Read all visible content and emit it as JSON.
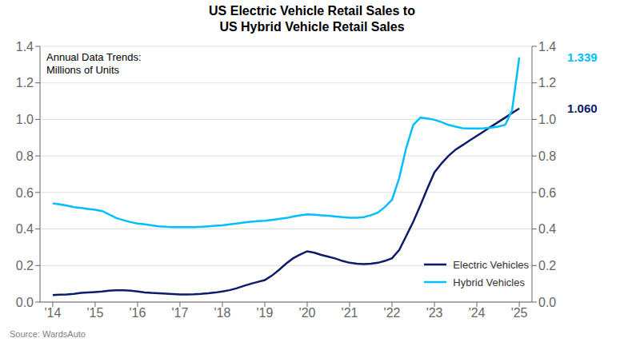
{
  "chart_data": {
    "type": "line",
    "title": "US Electric Vehicle Retail Sales to\nUS Hybrid Vehicle Retail Sales",
    "subtitle": "Annual Data Trends:\nMillions of Units",
    "source": "Source: WardsAuto",
    "x": [
      2014.0,
      2014.17,
      2014.33,
      2014.5,
      2014.67,
      2014.83,
      2015.0,
      2015.17,
      2015.33,
      2015.5,
      2015.67,
      2015.83,
      2016.0,
      2016.17,
      2016.33,
      2016.5,
      2016.67,
      2016.83,
      2017.0,
      2017.17,
      2017.33,
      2017.5,
      2017.67,
      2017.83,
      2018.0,
      2018.17,
      2018.33,
      2018.5,
      2018.67,
      2018.83,
      2019.0,
      2019.17,
      2019.33,
      2019.5,
      2019.67,
      2019.83,
      2020.0,
      2020.17,
      2020.33,
      2020.5,
      2020.67,
      2020.83,
      2021.0,
      2021.17,
      2021.33,
      2021.5,
      2021.67,
      2021.83,
      2022.0,
      2022.17,
      2022.33,
      2022.5,
      2022.67,
      2022.83,
      2023.0,
      2023.17,
      2023.33,
      2023.5,
      2023.67,
      2023.83,
      2024.0,
      2024.17,
      2024.33,
      2024.5,
      2024.67,
      2024.83,
      2025.0
    ],
    "series": [
      {
        "name": "Electric Vehicles",
        "color": "#0d1b6b",
        "values": [
          0.038,
          0.04,
          0.042,
          0.045,
          0.05,
          0.052,
          0.055,
          0.058,
          0.062,
          0.065,
          0.065,
          0.062,
          0.058,
          0.053,
          0.05,
          0.048,
          0.046,
          0.044,
          0.042,
          0.042,
          0.043,
          0.045,
          0.048,
          0.052,
          0.058,
          0.065,
          0.075,
          0.088,
          0.1,
          0.11,
          0.12,
          0.145,
          0.175,
          0.21,
          0.24,
          0.26,
          0.278,
          0.27,
          0.258,
          0.248,
          0.238,
          0.225,
          0.215,
          0.21,
          0.208,
          0.21,
          0.215,
          0.225,
          0.24,
          0.285,
          0.36,
          0.44,
          0.53,
          0.62,
          0.71,
          0.76,
          0.8,
          0.835,
          0.86,
          0.885,
          0.91,
          0.935,
          0.96,
          0.985,
          1.01,
          1.035,
          1.06
        ]
      },
      {
        "name": "Hybrid Vehicles",
        "color": "#00bfff",
        "values": [
          0.54,
          0.535,
          0.528,
          0.52,
          0.515,
          0.51,
          0.505,
          0.498,
          0.48,
          0.46,
          0.448,
          0.438,
          0.43,
          0.425,
          0.42,
          0.415,
          0.412,
          0.41,
          0.41,
          0.41,
          0.41,
          0.412,
          0.415,
          0.418,
          0.42,
          0.425,
          0.43,
          0.435,
          0.44,
          0.443,
          0.445,
          0.45,
          0.455,
          0.46,
          0.468,
          0.475,
          0.48,
          0.478,
          0.475,
          0.472,
          0.468,
          0.465,
          0.462,
          0.462,
          0.465,
          0.475,
          0.49,
          0.52,
          0.56,
          0.68,
          0.84,
          0.97,
          1.01,
          1.005,
          0.998,
          0.985,
          0.97,
          0.96,
          0.952,
          0.95,
          0.95,
          0.952,
          0.955,
          0.96,
          0.97,
          1.05,
          1.339
        ]
      }
    ],
    "xlim": [
      2013.7,
      2025.3
    ],
    "xticks": [
      {
        "value": 2014,
        "label": "'14"
      },
      {
        "value": 2015,
        "label": "'15"
      },
      {
        "value": 2016,
        "label": "'16"
      },
      {
        "value": 2017,
        "label": "'17"
      },
      {
        "value": 2018,
        "label": "'18"
      },
      {
        "value": 2019,
        "label": "'19"
      },
      {
        "value": 2020,
        "label": "'20"
      },
      {
        "value": 2021,
        "label": "'21"
      },
      {
        "value": 2022,
        "label": "'22"
      },
      {
        "value": 2023,
        "label": "'23"
      },
      {
        "value": 2024,
        "label": "'24"
      },
      {
        "value": 2025,
        "label": "'25"
      }
    ],
    "ylim": [
      0.0,
      1.4
    ],
    "yticks": [
      {
        "value": 0.0,
        "label": "0.0"
      },
      0.2,
      0.4,
      0.6,
      0.8,
      {
        "value": 1.0,
        "label": "1.0"
      },
      1.2,
      1.4
    ],
    "y2lim": [
      0.0,
      1.4
    ],
    "y2ticks": [
      {
        "value": 0.0,
        "label": "0.0"
      },
      0.2,
      0.4,
      0.6,
      0.8,
      {
        "value": 1.0,
        "label": "1.0"
      },
      1.2,
      1.4
    ],
    "grid": true,
    "legend": "lower right",
    "annotations": [
      {
        "text": "1.060",
        "x": 2025.0,
        "y": 1.06,
        "color": "#0d1b6b"
      },
      {
        "text": "1.339",
        "x": 2025.0,
        "y": 1.339,
        "color": "#00bfff"
      }
    ]
  }
}
